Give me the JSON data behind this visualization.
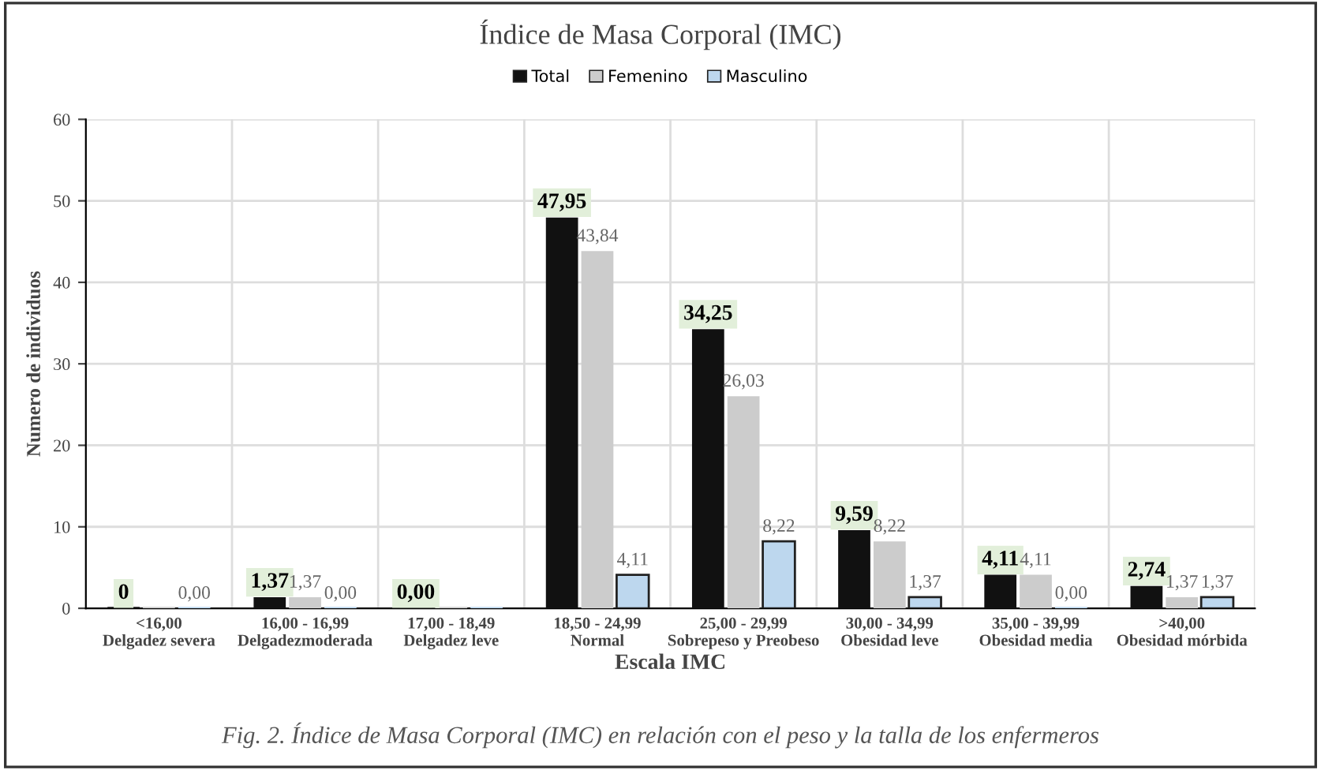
{
  "chart_data": {
    "type": "bar",
    "title": "Índice de Masa Corporal (IMC)",
    "xlabel": "Escala IMC",
    "ylabel": "Numero de individuos",
    "categories": [
      "<16,00\nDelgadez severa",
      "16,00 - 16,99\nDelgadezmoderada",
      "17,00 - 18,49\nDelgadez leve",
      "18,50 - 24,99\nNormal",
      "25,00 - 29,99\nSobrepeso y Preobeso",
      "30,00 - 34,99\nObesidad leve",
      "35,00 - 39,99\nObesidad media",
      ">40,00\nObesidad mórbida"
    ],
    "series": [
      {
        "name": "Total",
        "color": "#111111",
        "values": [
          0,
          1.37,
          0,
          47.95,
          34.25,
          9.59,
          4.11,
          2.74
        ],
        "value_labels": [
          "0",
          "1,37",
          "0,00",
          "47,95",
          "34,25",
          "9,59",
          "4,11",
          "2,74"
        ]
      },
      {
        "name": "Femenino",
        "color": "#cccccc",
        "values": [
          0,
          1.37,
          0,
          43.84,
          26.03,
          8.22,
          4.11,
          1.37
        ],
        "value_labels": [
          null,
          "1,37",
          null,
          "43,84",
          "26,03",
          "8,22",
          "4,11",
          "1,37"
        ]
      },
      {
        "name": "Masculino",
        "color": "#bdd7ee",
        "values": [
          0,
          0,
          0,
          4.11,
          8.22,
          1.37,
          0,
          1.37
        ],
        "value_labels": [
          "0,00",
          "0,00",
          null,
          "4,11",
          "8,22",
          "1,37",
          "0,00",
          "1,37"
        ]
      }
    ],
    "ylim": [
      0,
      60
    ],
    "yticks": [
      0,
      10,
      20,
      30,
      40,
      50,
      60
    ],
    "grid": true,
    "legend": "top",
    "annotations": [
      "Fig. 2. Índice de Masa Corporal (IMC) en relación con el peso y la talla de los enfermeros"
    ]
  }
}
